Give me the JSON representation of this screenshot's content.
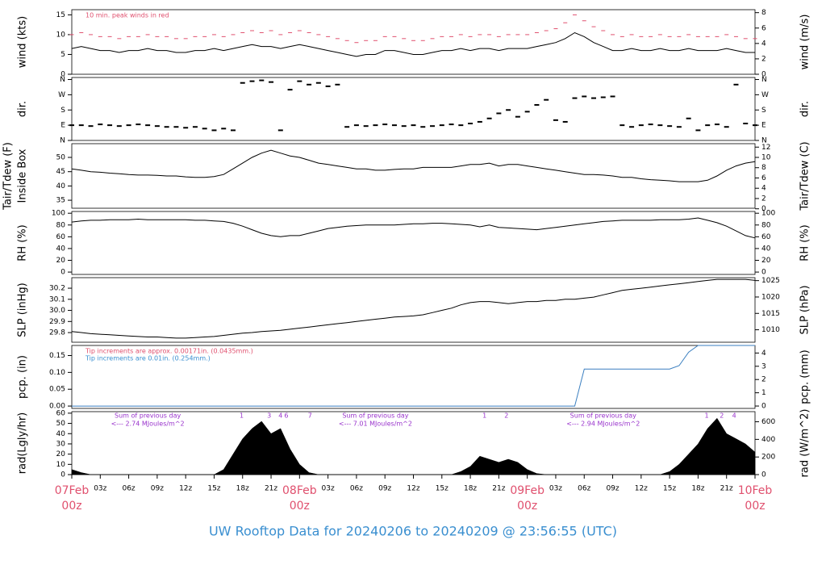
{
  "title": "UW Rooftop Data for 20240206  to  20240209 @ 23:56:55  (UTC)",
  "time": {
    "xlim": [
      0,
      72
    ],
    "x": [
      0,
      1,
      2,
      3,
      4,
      5,
      6,
      7,
      8,
      9,
      10,
      11,
      12,
      13,
      14,
      15,
      16,
      17,
      18,
      19,
      20,
      21,
      22,
      23,
      24,
      25,
      26,
      27,
      28,
      29,
      30,
      31,
      32,
      33,
      34,
      35,
      36,
      37,
      38,
      39,
      40,
      41,
      42,
      43,
      44,
      45,
      46,
      47,
      48,
      49,
      50,
      51,
      52,
      53,
      54,
      55,
      56,
      57,
      58,
      59,
      60,
      61,
      62,
      63,
      64,
      65,
      66,
      67,
      68,
      69,
      70,
      71,
      72
    ],
    "xticks": [
      {
        "value": 0,
        "label": "00z"
      },
      {
        "value": 3,
        "label": "03z"
      },
      {
        "value": 6,
        "label": "06z"
      },
      {
        "value": 9,
        "label": "09z"
      },
      {
        "value": 12,
        "label": "12z"
      },
      {
        "value": 15,
        "label": "15z"
      },
      {
        "value": 18,
        "label": "18z"
      },
      {
        "value": 21,
        "label": "21z"
      },
      {
        "value": 24,
        "label": "00z"
      },
      {
        "value": 27,
        "label": "03z"
      },
      {
        "value": 30,
        "label": "06z"
      },
      {
        "value": 33,
        "label": "09z"
      },
      {
        "value": 36,
        "label": "12z"
      },
      {
        "value": 39,
        "label": "15z"
      },
      {
        "value": 42,
        "label": "18z"
      },
      {
        "value": 45,
        "label": "21z"
      },
      {
        "value": 48,
        "label": "00z"
      },
      {
        "value": 51,
        "label": "03z"
      },
      {
        "value": 54,
        "label": "06z"
      },
      {
        "value": 57,
        "label": "09z"
      },
      {
        "value": 60,
        "label": "12z"
      },
      {
        "value": 63,
        "label": "15z"
      },
      {
        "value": 66,
        "label": "18z"
      },
      {
        "value": 69,
        "label": "21z"
      },
      {
        "value": 72,
        "label": "00z"
      }
    ],
    "date_labels": [
      {
        "value": 0,
        "label": "07Feb"
      },
      {
        "value": 24,
        "label": "08Feb"
      },
      {
        "value": 48,
        "label": "09Feb"
      },
      {
        "value": 72,
        "label": "10Feb"
      }
    ]
  },
  "chart_data": [
    {
      "type": "line",
      "ylabel": "wind (kts)",
      "y2label": "wind (m/s)",
      "ylim": [
        0,
        16.3
      ],
      "yticks": [
        0,
        5,
        10,
        15
      ],
      "y2lim": [
        0,
        8.385
      ],
      "y2ticks": [
        0,
        2,
        4,
        6,
        8
      ],
      "annotations": [
        {
          "text": "10 min. peak winds in red",
          "color": "#e0506e"
        }
      ],
      "series": [
        {
          "name": "wind",
          "style": "line",
          "color": "#000000",
          "values": [
            6.5,
            7,
            6.5,
            6,
            6,
            5.5,
            6,
            6,
            6.5,
            6,
            6,
            5.5,
            5.5,
            6,
            6,
            6.5,
            6,
            6.5,
            7,
            7.5,
            7,
            7,
            6.5,
            7,
            7.5,
            7,
            6.5,
            6,
            5.5,
            5,
            4.5,
            5,
            5,
            6,
            6,
            5.5,
            5,
            5,
            5.5,
            6,
            6,
            6.5,
            6,
            6.5,
            6.5,
            6,
            6.5,
            6.5,
            6.5,
            7,
            7.5,
            8,
            9,
            10.5,
            9.5,
            8,
            7,
            6,
            6,
            6.5,
            6,
            6,
            6.5,
            6,
            6,
            6.5,
            6,
            6,
            6,
            6.5,
            6,
            5.5,
            5.5
          ]
        },
        {
          "name": "peak",
          "style": "dash",
          "color": "#e0506e",
          "values": [
            10,
            10.5,
            10,
            9.5,
            9.5,
            9,
            9.5,
            9.5,
            10,
            9.5,
            9.5,
            9,
            9,
            9.5,
            9.5,
            10,
            9.5,
            10,
            10.5,
            11,
            10.5,
            11,
            10,
            10.5,
            11,
            10.5,
            10,
            9.5,
            9,
            8.5,
            8,
            8.5,
            8.5,
            9.5,
            9.5,
            9,
            8.5,
            8.5,
            9,
            9.5,
            9.5,
            10,
            9.5,
            10,
            10,
            9.5,
            10,
            10,
            10,
            10.5,
            11,
            11.5,
            13,
            15,
            13.5,
            12,
            11,
            10,
            9.5,
            10,
            9.5,
            9.5,
            10,
            9.5,
            9.5,
            10,
            9.5,
            9.5,
            9.5,
            10,
            9.5,
            9,
            9
          ]
        }
      ]
    },
    {
      "type": "scatter",
      "ylabel": "dir.",
      "y2label": "dir.",
      "ylim": [
        0,
        372
      ],
      "yticks": [
        {
          "value": 0,
          "label": "N"
        },
        {
          "value": 90,
          "label": "E"
        },
        {
          "value": 180,
          "label": "S"
        },
        {
          "value": 270,
          "label": "W"
        },
        {
          "value": 360,
          "label": "N"
        }
      ],
      "y2lim": [
        0,
        372
      ],
      "y2ticks": [
        {
          "value": 0,
          "label": "N"
        },
        {
          "value": 90,
          "label": "E"
        },
        {
          "value": 180,
          "label": "S"
        },
        {
          "value": 270,
          "label": "W"
        },
        {
          "value": 360,
          "label": "N"
        }
      ],
      "series": [
        {
          "name": "direction",
          "style": "dash",
          "color": "#000000",
          "values": [
            90,
            90,
            85,
            95,
            90,
            85,
            90,
            95,
            90,
            85,
            80,
            80,
            75,
            80,
            70,
            60,
            70,
            60,
            340,
            350,
            355,
            345,
            60,
            300,
            350,
            330,
            340,
            320,
            330,
            80,
            90,
            85,
            90,
            95,
            90,
            85,
            90,
            80,
            85,
            90,
            95,
            90,
            100,
            110,
            130,
            160,
            180,
            140,
            170,
            210,
            240,
            120,
            110,
            250,
            260,
            250,
            255,
            260,
            90,
            80,
            90,
            95,
            90,
            85,
            80,
            130,
            60,
            90,
            95,
            80,
            330,
            100,
            90
          ]
        }
      ]
    },
    {
      "type": "line",
      "ylabel": [
        "Tair/Tdew (F)",
        "Inside Box"
      ],
      "y2label": "Tair/Tdew (C)",
      "ylim": [
        32.2,
        54.8
      ],
      "yticks": [
        35,
        40,
        45,
        50
      ],
      "y2lim": [
        0.11,
        12.67
      ],
      "y2ticks": [
        0,
        2,
        4,
        6,
        8,
        10,
        12
      ],
      "series": [
        {
          "name": "temperature",
          "style": "line",
          "color": "#000000",
          "values": [
            46,
            45.5,
            45,
            44.8,
            44.5,
            44.3,
            44,
            43.8,
            43.8,
            43.7,
            43.5,
            43.5,
            43.2,
            43,
            43,
            43.3,
            44,
            46,
            48,
            50,
            51.5,
            52.5,
            51.5,
            50.5,
            50,
            49,
            48,
            47.5,
            47,
            46.5,
            46,
            46,
            45.5,
            45.5,
            45.8,
            46,
            46,
            46.5,
            46.5,
            46.5,
            46.5,
            47,
            47.5,
            47.5,
            48,
            47,
            47.5,
            47.5,
            47,
            46.5,
            46,
            45.5,
            45,
            44.5,
            44,
            44,
            43.8,
            43.5,
            43,
            43,
            42.5,
            42.2,
            42,
            41.8,
            41.5,
            41.5,
            41.5,
            42,
            43.5,
            45.5,
            47,
            48,
            48.5
          ]
        }
      ]
    },
    {
      "type": "line",
      "ylabel": "RH (%)",
      "y2label": "RH (%)",
      "ylim": [
        -4,
        103
      ],
      "yticks": [
        0,
        20,
        40,
        60,
        80,
        100
      ],
      "y2lim": [
        -4,
        103
      ],
      "y2ticks": [
        0,
        20,
        40,
        60,
        80,
        100
      ],
      "series": [
        {
          "name": "rh",
          "style": "line",
          "color": "#000000",
          "values": [
            85,
            87,
            88,
            88,
            89,
            89,
            89,
            90,
            89,
            89,
            89,
            89,
            89,
            88,
            88,
            87,
            86,
            83,
            78,
            72,
            66,
            62,
            60,
            62,
            62,
            66,
            70,
            74,
            76,
            78,
            79,
            80,
            80,
            80,
            80,
            81,
            82,
            82,
            83,
            83,
            82,
            81,
            80,
            77,
            80,
            76,
            75,
            74,
            73,
            72,
            74,
            76,
            78,
            80,
            82,
            84,
            86,
            87,
            88,
            88,
            88,
            88,
            89,
            89,
            89,
            90,
            92,
            88,
            84,
            78,
            70,
            62,
            58
          ]
        }
      ]
    },
    {
      "type": "line",
      "ylabel": "SLP (inHg)",
      "y2label": "SLP (hPa)",
      "ylim": [
        29.713,
        30.295
      ],
      "yticks": [
        {
          "value": 29.8,
          "label": "29.8"
        },
        {
          "value": 29.9,
          "label": "29.9"
        },
        {
          "value": 30.0,
          "label": "30.0"
        },
        {
          "value": 30.1,
          "label": "30.1"
        },
        {
          "value": 30.2,
          "label": "30.2"
        }
      ],
      "y2lim": [
        1006.2,
        1025.9
      ],
      "y2ticks": [
        1010,
        1015,
        1020,
        1025
      ],
      "series": [
        {
          "name": "slp",
          "style": "line",
          "color": "#000000",
          "values": [
            29.81,
            29.8,
            29.79,
            29.785,
            29.78,
            29.775,
            29.77,
            29.765,
            29.76,
            29.76,
            29.755,
            29.75,
            29.75,
            29.755,
            29.76,
            29.765,
            29.775,
            29.785,
            29.795,
            29.8,
            29.81,
            29.815,
            29.82,
            29.83,
            29.84,
            29.85,
            29.86,
            29.87,
            29.88,
            29.89,
            29.9,
            29.91,
            29.92,
            29.93,
            29.94,
            29.945,
            29.95,
            29.96,
            29.98,
            30.0,
            30.02,
            30.05,
            30.07,
            30.08,
            30.08,
            30.07,
            30.06,
            30.07,
            30.08,
            30.08,
            30.09,
            30.09,
            30.1,
            30.1,
            30.11,
            30.12,
            30.14,
            30.16,
            30.18,
            30.19,
            30.2,
            30.21,
            30.22,
            30.23,
            30.24,
            30.25,
            30.26,
            30.27,
            30.28,
            30.28,
            30.28,
            30.28,
            30.27
          ]
        }
      ]
    },
    {
      "type": "line",
      "ylabel": "pcp. (in)",
      "y2label": "pcp. (mm)",
      "ylim": [
        -0.007,
        0.18
      ],
      "yticks": [
        {
          "value": 0,
          "label": "0.00"
        },
        {
          "value": 0.05,
          "label": "0.05"
        },
        {
          "value": 0.1,
          "label": "0.10"
        },
        {
          "value": 0.15,
          "label": "0.15"
        }
      ],
      "y2lim": [
        -0.18,
        4.57
      ],
      "y2ticks": [
        0,
        1,
        2,
        3,
        4
      ],
      "annotations": [
        {
          "text": "Tip increments are approx. 0.00171in. (0.0435mm.)",
          "color": "#e0506e"
        },
        {
          "text": "Tip increments are 0.01in. (0.254mm.)",
          "color": "#3a8fd0"
        }
      ],
      "series": [
        {
          "name": "pcp",
          "style": "line",
          "color": "#3a7fc0",
          "values": [
            0,
            0,
            0,
            0,
            0,
            0,
            0,
            0,
            0,
            0,
            0,
            0,
            0,
            0,
            0,
            0,
            0,
            0,
            0,
            0,
            0,
            0,
            0,
            0,
            0,
            0,
            0,
            0,
            0,
            0,
            0,
            0,
            0,
            0,
            0,
            0,
            0,
            0,
            0,
            0,
            0,
            0,
            0,
            0,
            0,
            0,
            0,
            0,
            0,
            0,
            0,
            0,
            0,
            0,
            0.11,
            0.11,
            0.11,
            0.11,
            0.11,
            0.11,
            0.11,
            0.11,
            0.11,
            0.11,
            0.12,
            0.16,
            0.18,
            0.18,
            0.18,
            0.18,
            0.18,
            0.18,
            0.18
          ]
        }
      ]
    },
    {
      "type": "area",
      "ylabel": "rad(Lgly/hr)",
      "y2label": "rad (W/m^2)",
      "ylim": [
        0,
        61.5
      ],
      "yticks": [
        0,
        10,
        20,
        30,
        40,
        50,
        60
      ],
      "y2lim": [
        0,
        715
      ],
      "y2ticks": [
        0,
        200,
        400,
        600
      ],
      "day_sums": [
        {
          "x": 8,
          "label": "Sum of previous day",
          "value_text": "<--- 2.74 MJoules/m^2"
        },
        {
          "x": 32,
          "label": "Sum of previous day",
          "value_text": "<--- 7.01 MJoules/m^2"
        },
        {
          "x": 56,
          "label": "Sum of previous day",
          "value_text": "<--- 2.94 MJoules/m^2"
        }
      ],
      "hour_marks": [
        {
          "x": 17.9,
          "label": "1"
        },
        {
          "x": 20.8,
          "label": "3"
        },
        {
          "x": 22,
          "label": "4"
        },
        {
          "x": 22.6,
          "label": "6"
        },
        {
          "x": 25.1,
          "label": "7"
        },
        {
          "x": 43.5,
          "label": "1"
        },
        {
          "x": 45.8,
          "label": "2"
        },
        {
          "x": 66.9,
          "label": "1"
        },
        {
          "x": 68.5,
          "label": "2"
        },
        {
          "x": 69.8,
          "label": "4"
        }
      ],
      "series": [
        {
          "name": "radiation",
          "style": "area",
          "color": "#000000",
          "values": [
            5,
            2,
            0,
            0,
            0,
            0,
            0,
            0,
            0,
            0,
            0,
            0,
            0,
            0,
            0,
            0,
            5,
            20,
            35,
            45,
            52,
            40,
            45,
            25,
            10,
            2,
            0,
            0,
            0,
            0,
            0,
            0,
            0,
            0,
            0,
            0,
            0,
            0,
            0,
            0,
            0,
            3,
            8,
            18,
            15,
            12,
            15,
            12,
            5,
            1,
            0,
            0,
            0,
            0,
            0,
            0,
            0,
            0,
            0,
            0,
            0,
            0,
            0,
            3,
            10,
            20,
            30,
            45,
            55,
            40,
            35,
            30,
            22
          ]
        }
      ]
    }
  ]
}
